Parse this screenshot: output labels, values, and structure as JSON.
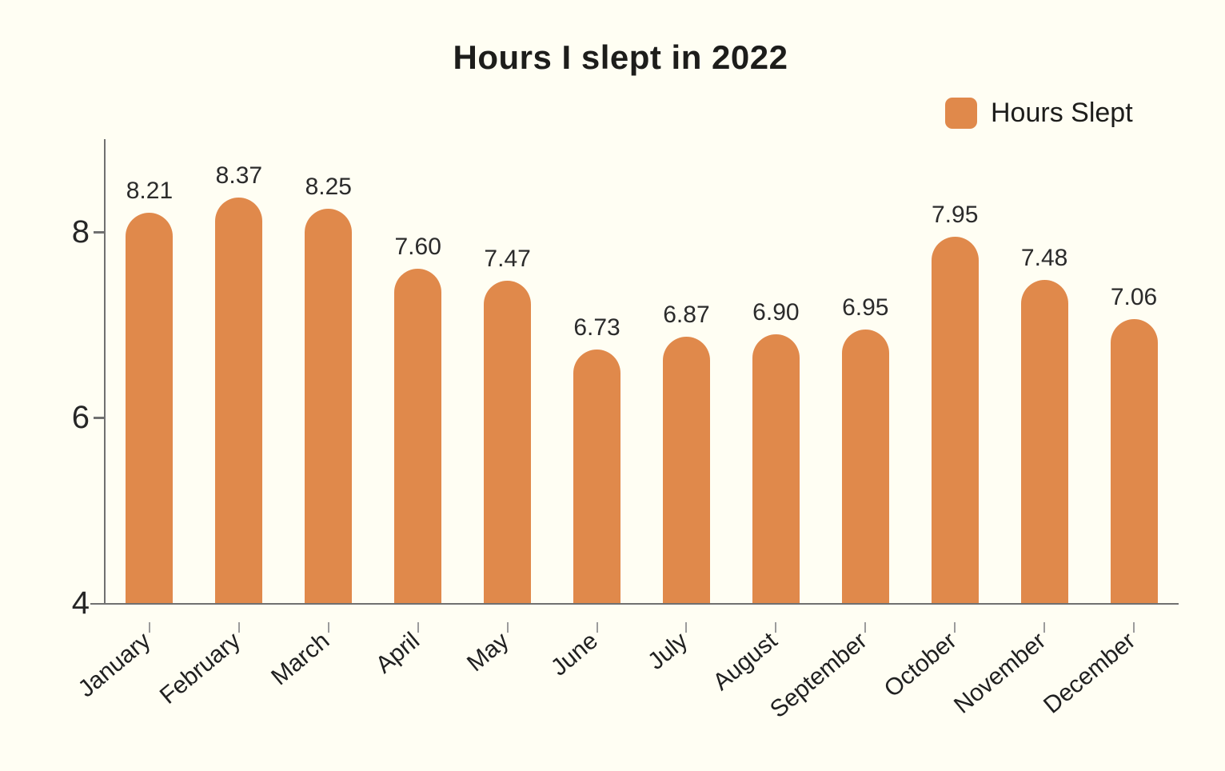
{
  "title": "Hours I slept in 2022",
  "legend": {
    "label": "Hours Slept",
    "swatch_color": "#E0894B"
  },
  "chart_data": {
    "type": "bar",
    "title": "Hours I slept in 2022",
    "categories": [
      "January",
      "February",
      "March",
      "April",
      "May",
      "June",
      "July",
      "August",
      "September",
      "October",
      "November",
      "December"
    ],
    "series": [
      {
        "name": "Hours Slept",
        "values": [
          8.21,
          8.37,
          8.25,
          7.6,
          7.47,
          6.73,
          6.87,
          6.9,
          6.95,
          7.95,
          7.48,
          7.06
        ]
      }
    ],
    "value_labels": [
      "8.21",
      "8.37",
      "8.25",
      "7.60",
      "7.47",
      "6.73",
      "6.87",
      "6.90",
      "6.95",
      "7.95",
      "7.48",
      "7.06"
    ],
    "xlabel": "",
    "ylabel": "",
    "y_ticks": [
      4,
      6,
      8
    ],
    "ylim": [
      4,
      9
    ],
    "grid": false,
    "legend_position": "top-right",
    "x_label_rotation_deg": -40,
    "bar_color": "#E0894B",
    "background_color": "#FFFEF3",
    "axis_color": "#707070",
    "tick_color": "#9C9C9C",
    "text_color": "#262626"
  }
}
